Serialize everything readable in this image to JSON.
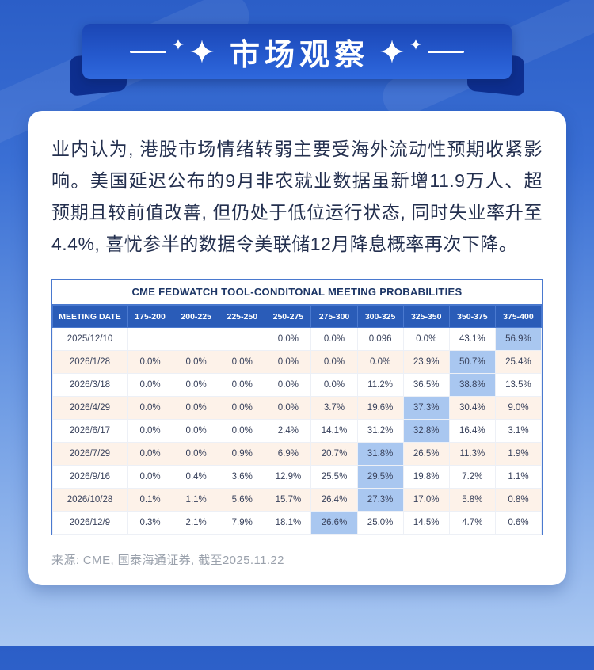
{
  "banner": {
    "title": "市场观察"
  },
  "paragraph": "业内认为, 港股市场情绪转弱主要受海外流动性预期收紧影响。美国延迟公布的9月非农就业数据虽新增11.9万人、超预期且较前值改善, 但仍处于低位运行状态, 同时失业率升至4.4%, 喜忧参半的数据令美联储12月降息概率再次下降。",
  "table": {
    "title": "CME FEDWATCH TOOL-CONDITONAL MEETING PROBABILITIES",
    "headers": [
      "MEETING DATE",
      "175-200",
      "200-225",
      "225-250",
      "250-275",
      "275-300",
      "300-325",
      "325-350",
      "350-375",
      "375-400"
    ],
    "rows": [
      {
        "date": "2025/12/10",
        "values": [
          "",
          "",
          "",
          "0.0%",
          "0.0%",
          "0.096",
          "0.0%",
          "43.1%",
          "56.9%"
        ]
      },
      {
        "date": "2026/1/28",
        "values": [
          "0.0%",
          "0.0%",
          "0.0%",
          "0.0%",
          "0.0%",
          "0.0%",
          "23.9%",
          "50.7%",
          "25.4%"
        ]
      },
      {
        "date": "2026/3/18",
        "values": [
          "0.0%",
          "0.0%",
          "0.0%",
          "0.0%",
          "0.0%",
          "11.2%",
          "36.5%",
          "38.8%",
          "13.5%"
        ]
      },
      {
        "date": "2026/4/29",
        "values": [
          "0.0%",
          "0.0%",
          "0.0%",
          "0.0%",
          "3.7%",
          "19.6%",
          "37.3%",
          "30.4%",
          "9.0%"
        ]
      },
      {
        "date": "2026/6/17",
        "values": [
          "0.0%",
          "0.0%",
          "0.0%",
          "2.4%",
          "14.1%",
          "31.2%",
          "32.8%",
          "16.4%",
          "3.1%"
        ]
      },
      {
        "date": "2026/7/29",
        "values": [
          "0.0%",
          "0.0%",
          "0.9%",
          "6.9%",
          "20.7%",
          "31.8%",
          "26.5%",
          "11.3%",
          "1.9%"
        ]
      },
      {
        "date": "2026/9/16",
        "values": [
          "0.0%",
          "0.4%",
          "3.6%",
          "12.9%",
          "25.5%",
          "29.5%",
          "19.8%",
          "7.2%",
          "1.1%"
        ]
      },
      {
        "date": "2026/10/28",
        "values": [
          "0.1%",
          "1.1%",
          "5.6%",
          "15.7%",
          "26.4%",
          "27.3%",
          "17.0%",
          "5.8%",
          "0.8%"
        ]
      },
      {
        "date": "2026/12/9",
        "values": [
          "0.3%",
          "2.1%",
          "7.9%",
          "18.1%",
          "26.6%",
          "25.0%",
          "14.5%",
          "4.7%",
          "0.6%"
        ]
      }
    ]
  },
  "source": "来源: CME, 国泰海通证券, 截至2025.11.22",
  "colors": {
    "background_top": "#2b5ec7",
    "background_bottom": "#aac8f2",
    "banner_blue": "#1b46b4",
    "fold_blue": "#0e2f90",
    "table_header_bg": "#2a5cb8",
    "highlight_cell": "#a9c7f0",
    "stripe_row": "#fdf2e9",
    "title_text": "#ffffff"
  }
}
